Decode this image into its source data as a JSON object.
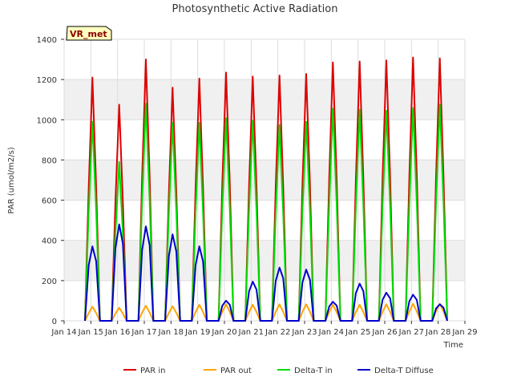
{
  "chart_data": {
    "type": "line",
    "title": "Photosynthetic Active Radiation",
    "xlabel": "Time",
    "ylabel": "PAR (umol/m2/s)",
    "site_tag": "VR_met",
    "xlim": [
      14,
      29
    ],
    "ylim": [
      0,
      1400
    ],
    "x_ticks": [
      {
        "x": 14,
        "label": "Jan 14"
      },
      {
        "x": 15,
        "label": "Jan 15"
      },
      {
        "x": 16,
        "label": "Jan 16"
      },
      {
        "x": 17,
        "label": "Jan 17"
      },
      {
        "x": 18,
        "label": "Jan 18"
      },
      {
        "x": 19,
        "label": "Jan 19"
      },
      {
        "x": 20,
        "label": "Jan 20"
      },
      {
        "x": 21,
        "label": "Jan 21"
      },
      {
        "x": 22,
        "label": "Jan 22"
      },
      {
        "x": 23,
        "label": "Jan 23"
      },
      {
        "x": 24,
        "label": "Jan 24"
      },
      {
        "x": 25,
        "label": "Jan 25"
      },
      {
        "x": 26,
        "label": "Jan 26"
      },
      {
        "x": 27,
        "label": "Jan 27"
      },
      {
        "x": 28,
        "label": "Jan 28"
      },
      {
        "x": 29,
        "label": "Jan 29"
      }
    ],
    "y_ticks": [
      0,
      200,
      400,
      600,
      800,
      1000,
      1200,
      1400
    ],
    "grid": true,
    "legend_position": "bottom",
    "days": [
      15,
      16,
      17,
      18,
      19,
      20,
      21,
      22,
      23,
      24,
      25,
      26,
      27,
      28
    ],
    "series": [
      {
        "name": "PAR in",
        "color": "#dd0000",
        "daily_peaks": [
          1210,
          1075,
          1300,
          1160,
          1205,
          1235,
          1215,
          1220,
          1228,
          1285,
          1290,
          1295,
          1310,
          1305
        ]
      },
      {
        "name": "PAR out",
        "color": "#ffa500",
        "daily_peaks": [
          70,
          65,
          75,
          72,
          80,
          82,
          80,
          82,
          82,
          80,
          80,
          82,
          85,
          85
        ]
      },
      {
        "name": "Delta-T in",
        "color": "#00dd00",
        "daily_peaks": [
          990,
          790,
          1080,
          985,
          985,
          1008,
          995,
          975,
          990,
          1055,
          1050,
          1045,
          1058,
          1075
        ]
      },
      {
        "name": "Delta-T Diffuse",
        "color": "#0000cc",
        "daily_peaks": [
          370,
          480,
          470,
          430,
          370,
          100,
          195,
          265,
          255,
          95,
          185,
          140,
          130,
          82
        ]
      }
    ]
  }
}
